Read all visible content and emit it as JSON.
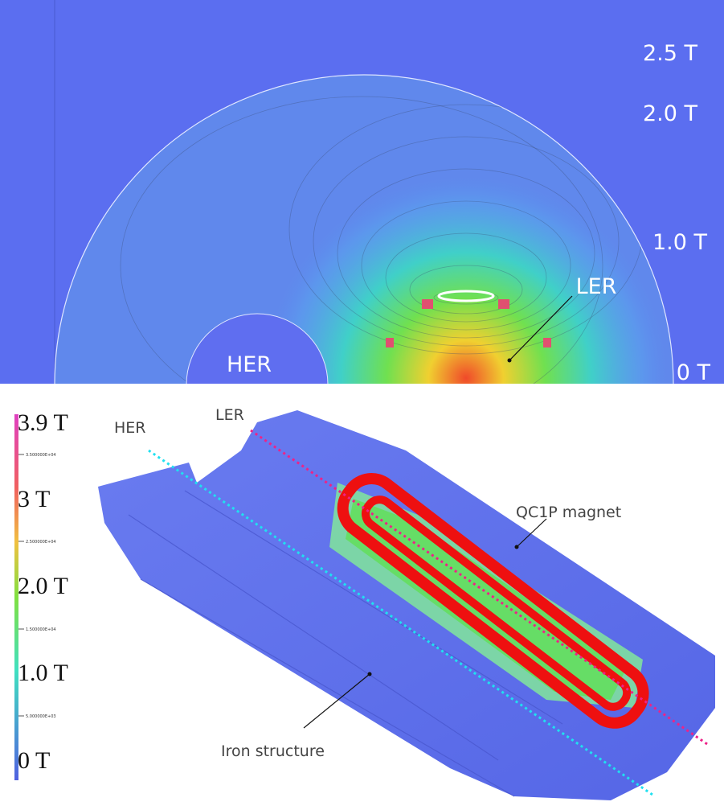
{
  "top_panel": {
    "scale_labels": [
      "2.5 T",
      "2.0 T",
      "1.0 T",
      "0 T"
    ],
    "beam_labels": {
      "ler": "LER",
      "her": "HER"
    }
  },
  "bottom_panel": {
    "scale_labels": [
      "3.9 T",
      "3 T",
      "2.0 T",
      "1.0 T",
      "0 T"
    ],
    "scale_ticks": [
      "3.500000E+04",
      "2.500000E+04",
      "1.500000E+04",
      "5.000000E+03"
    ],
    "beam_labels": {
      "her": "HER",
      "ler": "LER"
    },
    "annotations": {
      "magnet": "QC1P magnet",
      "iron": "Iron structure"
    }
  }
}
